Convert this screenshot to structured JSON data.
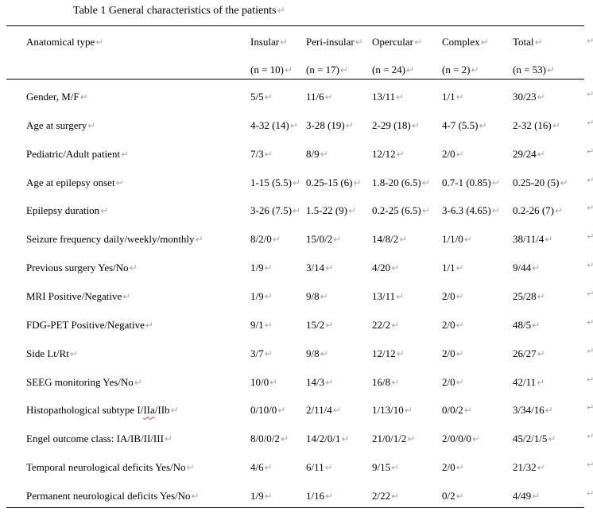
{
  "document": {
    "title": "Table 1 General characteristics of the patients"
  },
  "marks": {
    "paragraph": "↵",
    "row_end": "↵"
  },
  "colors": {
    "text": "#000000",
    "formatting_mark": "#a7a7a7",
    "spellcheck_underline": "#e0392e",
    "table_rule": "#000000"
  },
  "table": {
    "columns": [
      "Anatomical type",
      "Insular",
      "Peri-insular",
      "Opercular",
      "Complex",
      "Total"
    ],
    "subheaders": [
      "",
      "(n = 10)",
      "(n = 17)",
      "(n = 24)",
      "(n = 2)",
      "(n = 53)"
    ],
    "rows": [
      {
        "label": "Gender, M/F",
        "values": [
          "5/5",
          "11/6",
          "13/11",
          "1/1",
          "30/23"
        ]
      },
      {
        "label": "Age at surgery",
        "values": [
          "4-32 (14)",
          "3-28 (19)",
          "2-29 (18)",
          "4-7 (5.5)",
          "2-32 (16)"
        ]
      },
      {
        "label": "Pediatric/Adult patient",
        "values": [
          "7/3",
          "8/9",
          "12/12",
          "2/0",
          "29/24"
        ]
      },
      {
        "label": "Age at epilepsy onset",
        "values": [
          "1-15 (5.5)",
          "0.25-15 (6)",
          "1.8-20 (6.5)",
          "0.7-1 (0.85)",
          "0.25-20 (5)"
        ]
      },
      {
        "label": "Epilepsy duration",
        "values": [
          "3-26 (7.5)",
          "1.5-22 (9)",
          "0.2-25 (6.5)",
          "3-6.3 (4.65)",
          "0.2-26 (7)"
        ]
      },
      {
        "label": "Seizure frequency daily/weekly/monthly",
        "values": [
          "8/2/0",
          "15/0/2",
          "14/8/2",
          "1/1/0",
          "38/11/4"
        ]
      },
      {
        "label": "Previous surgery Yes/No",
        "values": [
          "1/9",
          "3/14",
          "4/20",
          "1/1",
          "9/44"
        ]
      },
      {
        "label": "MRI Positive/Negative",
        "values": [
          "1/9",
          "9/8",
          "13/11",
          "2/0",
          "25/28"
        ]
      },
      {
        "label": "FDG-PET Positive/Negative",
        "values": [
          "9/1",
          "15/2",
          "22/2",
          "2/0",
          "48/5"
        ]
      },
      {
        "label": "Side Lt/Rt",
        "values": [
          "3/7",
          "9/8",
          "12/12",
          "2/0",
          "26/27"
        ]
      },
      {
        "label": "SEEG monitoring Yes/No",
        "values": [
          "10/0",
          "14/3",
          "16/8",
          "2/0",
          "42/11"
        ]
      },
      {
        "label": "Histopathological subtype I/IIa/IIb",
        "spellcheck": {
          "before": "Histopathological subtype I/",
          "word": "IIa",
          "after": "/IIb"
        },
        "values": [
          "0/10/0",
          "2/11/4",
          "1/13/10",
          "0/0/2",
          "3/34/16"
        ]
      },
      {
        "label": "Engel outcome class: IA/IB/II/III",
        "values": [
          "8/0/0/2",
          "14/2/0/1",
          "21/0/1/2",
          "2/0/0/0",
          "45/2/1/5"
        ]
      },
      {
        "label": "Temporal neurological deficits Yes/No",
        "values": [
          "4/6",
          "6/11",
          "9/15",
          "2/0",
          "21/32"
        ]
      },
      {
        "label": "Permanent neurological deficits Yes/No",
        "values": [
          "1/9",
          "1/16",
          "2/22",
          "0/2",
          "4/49"
        ]
      }
    ]
  }
}
